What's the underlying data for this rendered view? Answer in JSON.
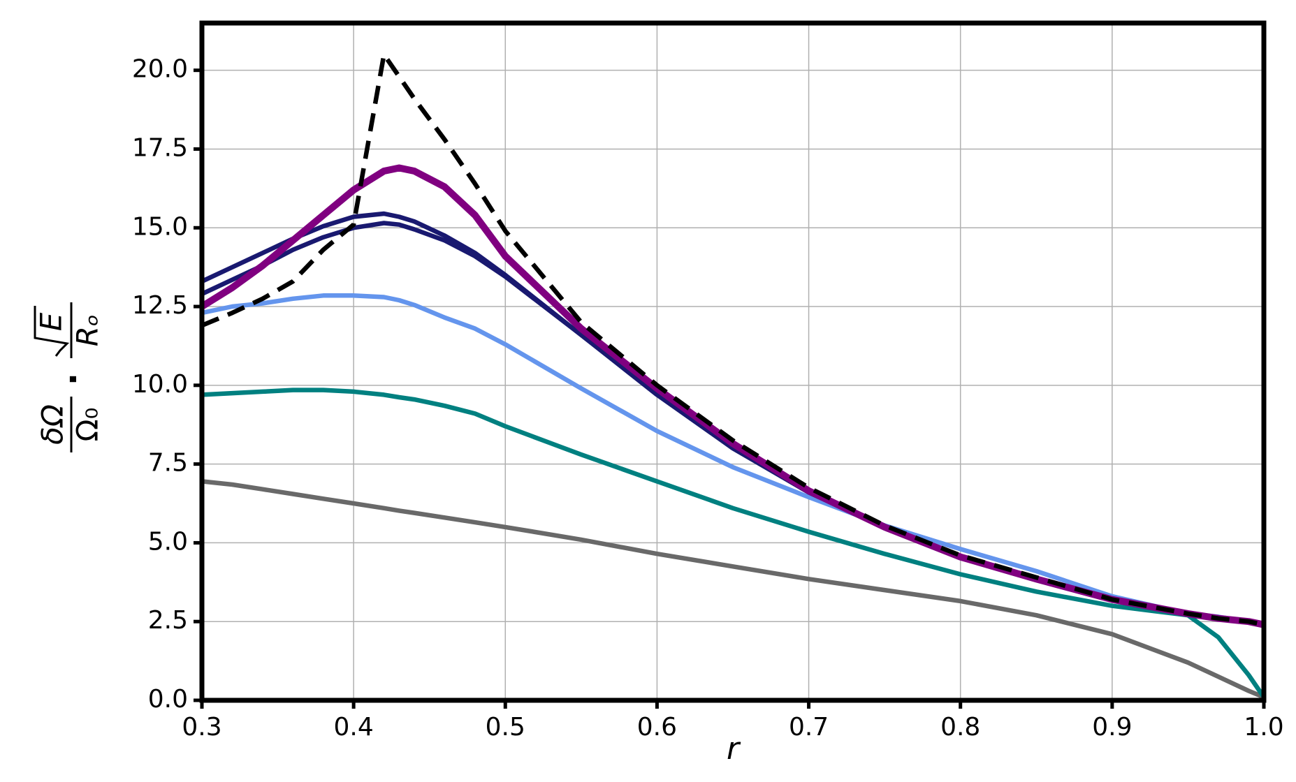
{
  "chart_data": {
    "type": "line",
    "x_label": "r",
    "y_label": {
      "numerator_1": "δΩ",
      "denominator_1": "Ω₀",
      "operator": "·",
      "numerator_2": "E",
      "denominator_2": "Rₒ"
    },
    "x": [
      0.3,
      0.32,
      0.34,
      0.36,
      0.38,
      0.4,
      0.42,
      0.43,
      0.44,
      0.46,
      0.48,
      0.5,
      0.55,
      0.6,
      0.65,
      0.7,
      0.75,
      0.8,
      0.85,
      0.9,
      0.95,
      0.97,
      0.99,
      1.0
    ],
    "series": [
      {
        "color": "#696969",
        "linestyle": "solid",
        "values": [
          6.95,
          6.85,
          6.7,
          6.55,
          6.4,
          6.25,
          6.1,
          6.02,
          5.95,
          5.8,
          5.65,
          5.5,
          5.1,
          4.65,
          4.25,
          3.85,
          3.5,
          3.15,
          2.7,
          2.1,
          1.2,
          0.75,
          0.3,
          0.1
        ]
      },
      {
        "color": "#008080",
        "linestyle": "solid",
        "values": [
          9.7,
          9.75,
          9.8,
          9.85,
          9.85,
          9.8,
          9.7,
          9.62,
          9.55,
          9.35,
          9.1,
          8.7,
          7.8,
          6.95,
          6.1,
          5.35,
          4.65,
          4.0,
          3.45,
          3.0,
          2.7,
          2.0,
          0.8,
          0.1
        ]
      },
      {
        "color": "#6495ed",
        "linestyle": "solid",
        "values": [
          12.3,
          12.5,
          12.6,
          12.75,
          12.85,
          12.85,
          12.8,
          12.7,
          12.55,
          12.15,
          11.8,
          11.3,
          9.9,
          8.55,
          7.4,
          6.45,
          5.55,
          4.8,
          4.1,
          3.3,
          2.75,
          2.65,
          2.5,
          2.4
        ]
      },
      {
        "color": "#191970",
        "linestyle": "solid",
        "values": [
          13.3,
          13.75,
          14.2,
          14.65,
          15.05,
          15.35,
          15.45,
          15.35,
          15.2,
          14.75,
          14.2,
          13.5,
          11.6,
          9.7,
          8.0,
          6.6,
          5.5,
          4.55,
          3.85,
          3.2,
          2.75,
          2.6,
          2.5,
          2.4
        ]
      },
      {
        "color": "#191970",
        "linestyle": "solid",
        "values": [
          12.9,
          13.35,
          13.8,
          14.3,
          14.7,
          15.0,
          15.15,
          15.1,
          14.95,
          14.6,
          14.1,
          13.45,
          11.6,
          9.75,
          8.0,
          6.6,
          5.5,
          4.55,
          3.85,
          3.2,
          2.75,
          2.6,
          2.5,
          2.4
        ]
      },
      {
        "color": "#800080",
        "linestyle": "solid",
        "values": [
          12.5,
          13.1,
          13.8,
          14.6,
          15.4,
          16.2,
          16.8,
          16.9,
          16.8,
          16.3,
          15.4,
          14.1,
          11.8,
          9.9,
          8.15,
          6.65,
          5.5,
          4.55,
          3.85,
          3.2,
          2.75,
          2.6,
          2.5,
          2.4
        ]
      },
      {
        "color": "#000000",
        "linestyle": "dashed",
        "values": [
          11.9,
          12.3,
          12.75,
          13.3,
          14.3,
          15.1,
          20.5,
          19.8,
          19.1,
          17.8,
          16.4,
          14.9,
          12.0,
          10.0,
          8.25,
          6.75,
          5.55,
          4.6,
          3.9,
          3.2,
          2.75,
          2.6,
          2.5,
          2.4
        ]
      }
    ],
    "xlim": [
      0.3,
      1
    ],
    "xticks": [
      0.3,
      0.4,
      0.5,
      0.6,
      0.7,
      0.8,
      0.9,
      {
        "value": 1,
        "label": "1.0"
      }
    ],
    "ylim": [
      0,
      21.5
    ],
    "yticks": [
      {
        "value": 0,
        "label": "0.0"
      },
      2.5,
      {
        "value": 5,
        "label": "5.0"
      },
      7.5,
      {
        "value": 10,
        "label": "10.0"
      },
      12.5,
      {
        "value": 15,
        "label": "15.0"
      },
      17.5,
      {
        "value": 20,
        "label": "20.0"
      }
    ],
    "grid": true
  }
}
